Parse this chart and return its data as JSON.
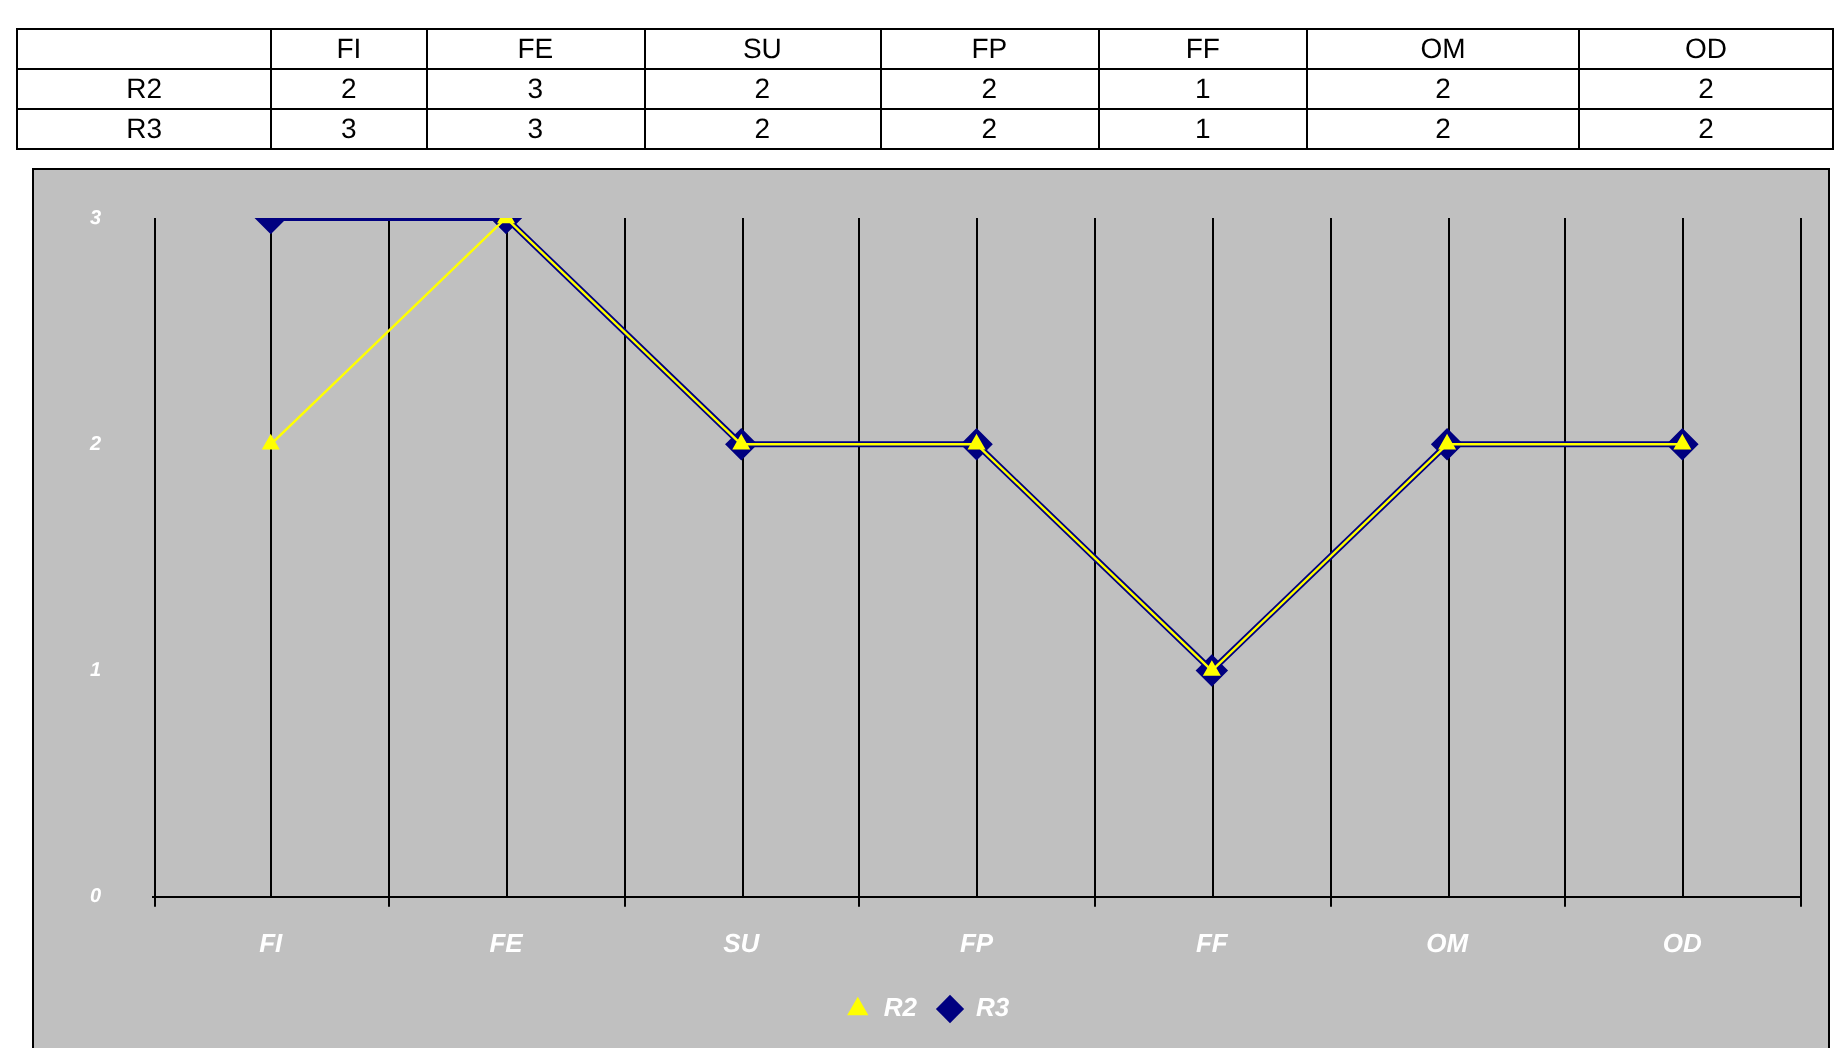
{
  "chart_data": {
    "type": "line",
    "categories": [
      "FI",
      "FE",
      "SU",
      "FP",
      "FF",
      "OM",
      "OD"
    ],
    "series": [
      {
        "name": "R2",
        "color": "#ffff00",
        "marker": "triangle",
        "values": [
          2,
          3,
          2,
          2,
          1,
          2,
          2
        ]
      },
      {
        "name": "R3",
        "color": "#000080",
        "marker": "diamond",
        "values": [
          3,
          3,
          2,
          2,
          1,
          2,
          2
        ]
      }
    ],
    "ylim": [
      0,
      3
    ],
    "yticks": [
      0,
      1,
      2,
      3
    ],
    "grid": "x",
    "legend": "bottom",
    "data_labels": true
  }
}
